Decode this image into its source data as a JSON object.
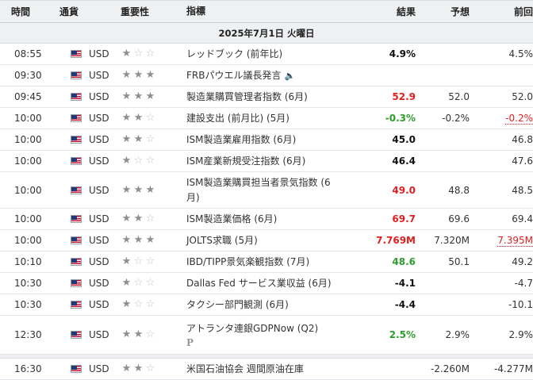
{
  "headers": {
    "time": "時間",
    "currency": "通貨",
    "importance": "重要性",
    "event": "指標",
    "actual": "結果",
    "forecast": "予想",
    "previous": "前回"
  },
  "date_label": "2025年7月1日 火曜日",
  "colors": {
    "red": "#e02020",
    "green": "#2e9e2e"
  },
  "rows": [
    {
      "time": "08:55",
      "currency": "USD",
      "stars": 1,
      "event": "レッドブック (前年比)",
      "actual": "4.9%",
      "actual_color": "black",
      "forecast": "",
      "previous": "4.5%"
    },
    {
      "time": "09:30",
      "currency": "USD",
      "stars": 3,
      "event": "FRBパウエル議長発言",
      "speaker_icon": true,
      "actual": "",
      "forecast": "",
      "previous": ""
    },
    {
      "time": "09:45",
      "currency": "USD",
      "stars": 3,
      "event": "製造業購買管理者指数 (6月)",
      "actual": "52.9",
      "actual_color": "red",
      "forecast": "52.0",
      "previous": "52.0"
    },
    {
      "time": "10:00",
      "currency": "USD",
      "stars": 2,
      "event": "建設支出 (前月比) (5月)",
      "actual": "-0.3%",
      "actual_color": "green",
      "forecast": "-0.2%",
      "previous": "-0.2%",
      "previous_style": "ul-red"
    },
    {
      "time": "10:00",
      "currency": "USD",
      "stars": 2,
      "event": "ISM製造業雇用指数 (6月)",
      "actual": "45.0",
      "actual_color": "black",
      "forecast": "",
      "previous": "46.8"
    },
    {
      "time": "10:00",
      "currency": "USD",
      "stars": 1,
      "event": "ISM産業新規受注指数 (6月)",
      "actual": "46.4",
      "actual_color": "black",
      "forecast": "",
      "previous": "47.6"
    },
    {
      "time": "10:00",
      "currency": "USD",
      "stars": 3,
      "event": "ISM製造業購買担当者景気指数 (6月)",
      "actual": "49.0",
      "actual_color": "red",
      "forecast": "48.8",
      "previous": "48.5"
    },
    {
      "time": "10:00",
      "currency": "USD",
      "stars": 2,
      "event": "ISM製造業価格 (6月)",
      "actual": "69.7",
      "actual_color": "red",
      "forecast": "69.6",
      "previous": "69.4"
    },
    {
      "time": "10:00",
      "currency": "USD",
      "stars": 3,
      "event": "JOLTS求職 (5月)",
      "actual": "7.769M",
      "actual_color": "red",
      "forecast": "7.320M",
      "previous": "7.395M",
      "previous_style": "ul-red"
    },
    {
      "time": "10:10",
      "currency": "USD",
      "stars": 1,
      "event": "IBD/TIPP景気楽観指数 (7月)",
      "actual": "48.6",
      "actual_color": "green",
      "forecast": "50.1",
      "previous": "49.2"
    },
    {
      "time": "10:30",
      "currency": "USD",
      "stars": 1,
      "event": "Dallas Fed サービス業収益 (6月)",
      "actual": "-4.1",
      "actual_color": "black",
      "forecast": "",
      "previous": "-4.7"
    },
    {
      "time": "10:30",
      "currency": "USD",
      "stars": 1,
      "event": "タクシー部門観測 (6月)",
      "actual": "-4.4",
      "actual_color": "black",
      "forecast": "",
      "previous": "-10.1"
    },
    {
      "time": "12:30",
      "currency": "USD",
      "stars": 2,
      "event": "アトランタ連銀GDPNow (Q2)",
      "prelim_icon": "P",
      "actual": "2.5%",
      "actual_color": "green",
      "forecast": "2.9%",
      "previous": "2.9%"
    },
    {
      "time": "16:30",
      "currency": "USD",
      "stars": 2,
      "event": "米国石油協会 週間原油在庫",
      "actual": "",
      "forecast": "-2.260M",
      "previous": "-4.277M"
    }
  ]
}
